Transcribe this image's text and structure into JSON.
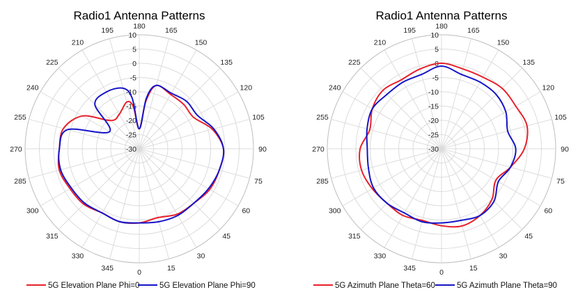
{
  "chart_data": [
    {
      "type": "polar",
      "title": "Radio1 Antenna Patterns",
      "angle_ticks": [
        "0",
        "15",
        "30",
        "45",
        "60",
        "75",
        "90",
        "105",
        "120",
        "135",
        "150",
        "165",
        "180",
        "195",
        "210",
        "225",
        "240",
        "255",
        "270",
        "285",
        "300",
        "315",
        "330",
        "345"
      ],
      "radial_ticks": [
        "-30",
        "-25",
        "-20",
        "-15",
        "-10",
        "-5",
        "0",
        "5",
        "10"
      ],
      "rlim": [
        -30,
        10
      ],
      "angle_direction": "counterclockwise, 0 at bottom, 90 at right",
      "legend_position": "bottom",
      "series": [
        {
          "name": "5G Elevation Plane Phi=0",
          "color": "#e8202a",
          "theta": [
            0,
            15,
            30,
            45,
            60,
            75,
            90,
            105,
            120,
            135,
            150,
            165,
            172,
            180,
            188,
            195,
            210,
            225,
            240,
            255,
            270,
            285,
            300,
            315,
            330,
            345,
            360
          ],
          "values": [
            -4,
            -5,
            -3.5,
            -3,
            -1.5,
            -1,
            -0.5,
            -3.5,
            -8,
            -8,
            -8,
            -7,
            -13,
            -23,
            -15,
            -13,
            -16,
            -16,
            -7,
            -2.5,
            -2,
            -1,
            -2,
            -2.5,
            -4,
            -3.5,
            -4
          ]
        },
        {
          "name": "5G Elevation Plane Phi=90",
          "color": "#1515c8",
          "theta": [
            0,
            15,
            30,
            45,
            60,
            75,
            90,
            105,
            120,
            135,
            150,
            165,
            172,
            180,
            188,
            195,
            210,
            225,
            240,
            255,
            270,
            285,
            300,
            315,
            330,
            345,
            360
          ],
          "values": [
            -4,
            -3.5,
            -3,
            -3,
            -2,
            -1,
            -0.5,
            -3,
            -6.5,
            -6.5,
            -7.5,
            -7,
            -12,
            -23,
            -12,
            -8,
            -7,
            -8,
            -18,
            -4,
            -2,
            -1.5,
            -2.5,
            -3,
            -4,
            -3.5,
            -4
          ]
        }
      ]
    },
    {
      "type": "polar",
      "title": "Radio1 Antenna Patterns",
      "angle_ticks": [
        "0",
        "15",
        "30",
        "45",
        "60",
        "75",
        "90",
        "105",
        "120",
        "135",
        "150",
        "165",
        "180",
        "195",
        "210",
        "225",
        "240",
        "255",
        "270",
        "285",
        "300",
        "315",
        "330",
        "345"
      ],
      "radial_ticks": [
        "-30",
        "-25",
        "-20",
        "-15",
        "-10",
        "-5",
        "0",
        "5",
        "10"
      ],
      "rlim": [
        -30,
        10
      ],
      "angle_direction": "counterclockwise, 0 at bottom, 90 at right",
      "legend_position": "bottom",
      "series": [
        {
          "name": "5G Azimuth Plane Theta=60",
          "color": "#e8202a",
          "theta": [
            0,
            15,
            30,
            45,
            60,
            75,
            90,
            105,
            120,
            135,
            150,
            165,
            180,
            195,
            210,
            225,
            240,
            255,
            270,
            285,
            300,
            315,
            330,
            345,
            360
          ],
          "values": [
            -3,
            -2,
            -3,
            -5,
            -8,
            -5,
            -1,
            1,
            0,
            0,
            -1,
            -1,
            0,
            -1,
            -2,
            -1,
            -2,
            -4,
            -1.5,
            -1,
            -2,
            -3,
            -3,
            -4,
            -3
          ]
        },
        {
          "name": "5G Azimuth Plane Theta=90",
          "color": "#1515c8",
          "theta": [
            0,
            15,
            30,
            45,
            60,
            75,
            90,
            105,
            120,
            135,
            150,
            165,
            180,
            195,
            210,
            225,
            240,
            255,
            270,
            285,
            300,
            315,
            330,
            345,
            360
          ],
          "values": [
            -4,
            -4,
            -3,
            -4,
            -7,
            -5,
            -4,
            -6,
            -4,
            -3,
            -3,
            -3,
            -1,
            -3,
            -3,
            -3,
            -2,
            -3,
            -4,
            -3.5,
            -2.5,
            -3,
            -4,
            -3.5,
            -4
          ]
        }
      ]
    }
  ]
}
